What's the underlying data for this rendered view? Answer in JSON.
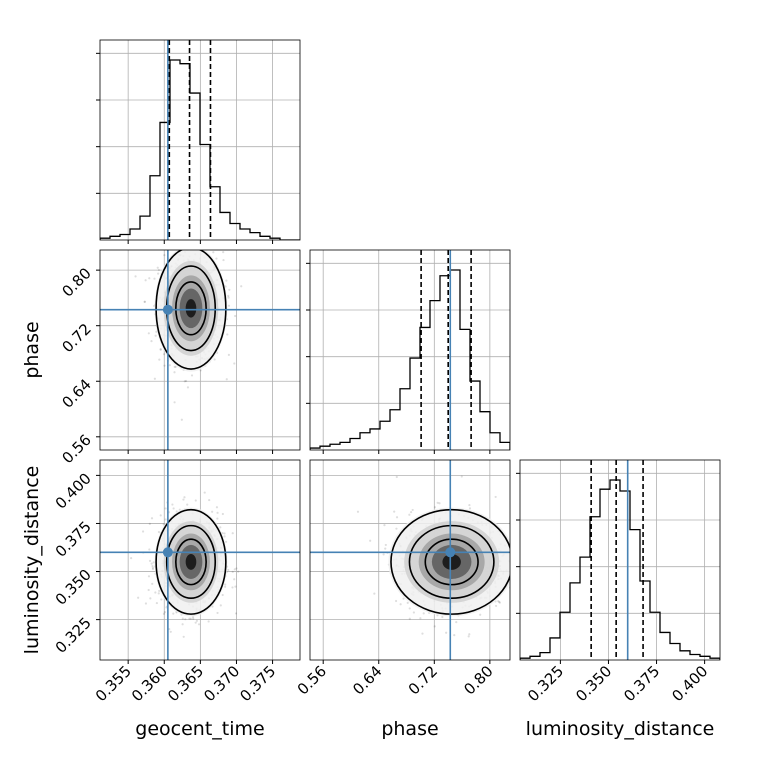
{
  "chart_data": {
    "type": "corner",
    "parameters": [
      "geocent_time",
      "phase",
      "luminosity_distance"
    ],
    "truths": {
      "geocent_time": 0.3605,
      "phase": 0.743,
      "luminosity_distance": 0.36
    },
    "quantiles": {
      "geocent_time": [
        0.3607,
        0.3635,
        0.3664
      ],
      "phase": [
        0.701,
        0.74,
        0.773
      ],
      "luminosity_distance": [
        0.341,
        0.354,
        0.368
      ]
    },
    "ranges": {
      "geocent_time": [
        0.3511,
        0.3788
      ],
      "phase": [
        0.541,
        0.829
      ],
      "luminosity_distance": [
        0.304,
        0.408
      ]
    },
    "histograms": {
      "geocent_time": {
        "edges_range": [
          0.3511,
          0.3788
        ],
        "counts": [
          1,
          2,
          3,
          6,
          13,
          35,
          64,
          98,
          96,
          80,
          52,
          29,
          15,
          9,
          6,
          4,
          2,
          1,
          0,
          0
        ]
      },
      "phase": {
        "edges_range": [
          0.541,
          0.829
        ],
        "counts": [
          1,
          2,
          3,
          4,
          6,
          9,
          11,
          15,
          21,
          32,
          48,
          64,
          78,
          91,
          94,
          63,
          36,
          20,
          9,
          4
        ]
      },
      "luminosity_distance": {
        "edges_range": [
          0.304,
          0.408
        ],
        "counts": [
          1,
          2,
          4,
          12,
          26,
          42,
          56,
          78,
          93,
          98,
          92,
          71,
          43,
          26,
          15,
          9,
          5,
          3,
          2,
          1
        ]
      }
    },
    "ticks": {
      "geocent_time": {
        "values": [
          0.355,
          0.36,
          0.365,
          0.37,
          0.375
        ],
        "labels": [
          "0.355",
          "0.360",
          "0.365",
          "0.370",
          "0.375"
        ]
      },
      "phase": {
        "values": [
          0.56,
          0.64,
          0.72,
          0.8
        ],
        "labels": [
          "0.56",
          "0.64",
          "0.72",
          "0.80"
        ]
      },
      "luminosity_distance": {
        "values": [
          0.325,
          0.35,
          0.375,
          0.4
        ],
        "labels": [
          "0.325",
          "0.350",
          "0.375",
          "0.400"
        ]
      }
    },
    "posterior_centers": {
      "geocent_time": {
        "mean": 0.3637,
        "sd": 0.0021
      },
      "phase": {
        "mean": 0.745,
        "sd": 0.038
      },
      "luminosity_distance": {
        "mean": 0.355,
        "sd": 0.0118
      }
    },
    "grid": true
  }
}
